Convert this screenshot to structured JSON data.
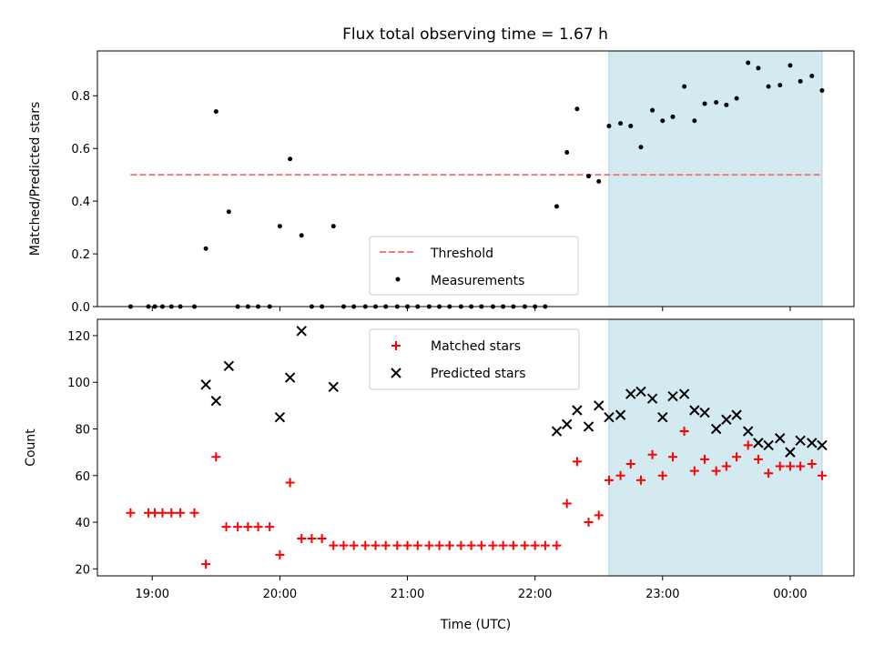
{
  "chart_data": [
    {
      "type": "scatter",
      "title": "Flux total observing time = 1.67 h",
      "ylabel": "Matched/Predicted stars",
      "xlabel": "",
      "ylim": [
        0,
        0.97
      ],
      "yticks": [
        0.0,
        0.2,
        0.4,
        0.6,
        0.8
      ],
      "ytick_labels": [
        "0.0",
        "0.2",
        "0.4",
        "0.6",
        "0.8"
      ],
      "xlim": [
        18.57,
        24.5
      ],
      "shaded_span": [
        22.58,
        24.25
      ],
      "shade_color": "#d4eaf1",
      "threshold": {
        "name": "Threshold",
        "y": 0.5,
        "x_start": 18.83,
        "x_end": 24.25,
        "color": "#f07b7b"
      },
      "series": [
        {
          "name": "Measurements",
          "marker": "dot",
          "color": "#000000",
          "x": [
            18.83,
            18.97,
            19.02,
            19.08,
            19.15,
            19.22,
            19.33,
            19.42,
            19.5,
            19.6,
            19.67,
            19.75,
            19.83,
            19.92,
            20.0,
            20.08,
            20.17,
            20.25,
            20.33,
            20.42,
            20.5,
            20.58,
            20.67,
            20.75,
            20.83,
            20.92,
            21.0,
            21.08,
            21.17,
            21.25,
            21.33,
            21.42,
            21.5,
            21.58,
            21.67,
            21.75,
            21.83,
            21.92,
            22.0,
            22.08,
            22.17,
            22.25,
            22.33,
            22.42,
            22.5,
            22.58,
            22.67,
            22.75,
            22.83,
            22.92,
            23.0,
            23.08,
            23.17,
            23.25,
            23.33,
            23.42,
            23.5,
            23.58,
            23.67,
            23.75,
            23.83,
            23.92,
            24.0,
            24.08,
            24.17,
            24.25
          ],
          "y": [
            0,
            0,
            0,
            0,
            0,
            0,
            0,
            0.22,
            0.74,
            0.36,
            0,
            0,
            0,
            0,
            0.305,
            0.56,
            0.27,
            0,
            0,
            0.305,
            0,
            0,
            0,
            0,
            0,
            0,
            0,
            0,
            0,
            0,
            0,
            0,
            0,
            0,
            0,
            0,
            0,
            0,
            0,
            0,
            0.38,
            0.585,
            0.75,
            0.495,
            0.475,
            0.685,
            0.695,
            0.685,
            0.605,
            0.745,
            0.705,
            0.72,
            0.835,
            0.705,
            0.77,
            0.775,
            0.765,
            0.79,
            0.925,
            0.905,
            0.835,
            0.84,
            0.915,
            0.855,
            0.875,
            0.82
          ]
        }
      ],
      "legend": {
        "placement": "lower center",
        "entries": [
          "Threshold",
          "Measurements"
        ]
      }
    },
    {
      "type": "scatter",
      "ylabel": "Count",
      "xlabel": "Time (UTC)",
      "ylim": [
        17,
        127
      ],
      "yticks": [
        20,
        40,
        60,
        80,
        100,
        120
      ],
      "ytick_labels": [
        "20",
        "40",
        "60",
        "80",
        "100",
        "120"
      ],
      "xlim": [
        18.57,
        24.5
      ],
      "xticks": [
        19,
        20,
        21,
        22,
        23,
        24
      ],
      "xtick_labels": [
        "19:00",
        "20:00",
        "21:00",
        "22:00",
        "23:00",
        "00:00"
      ],
      "shaded_span": [
        22.58,
        24.25
      ],
      "shade_color": "#d4eaf1",
      "series": [
        {
          "name": "Matched stars",
          "marker": "plus",
          "color": "#ff0000",
          "x": [
            18.83,
            18.97,
            19.02,
            19.08,
            19.15,
            19.22,
            19.33,
            19.42,
            19.5,
            19.58,
            19.67,
            19.75,
            19.83,
            19.92,
            20.0,
            20.08,
            20.17,
            20.25,
            20.33,
            20.42,
            20.5,
            20.58,
            20.67,
            20.75,
            20.83,
            20.92,
            21.0,
            21.08,
            21.17,
            21.25,
            21.33,
            21.42,
            21.5,
            21.58,
            21.67,
            21.75,
            21.83,
            21.92,
            22.0,
            22.08,
            22.17,
            22.25,
            22.33,
            22.42,
            22.5,
            22.58,
            22.67,
            22.75,
            22.83,
            22.92,
            23.0,
            23.08,
            23.17,
            23.25,
            23.33,
            23.42,
            23.5,
            23.58,
            23.67,
            23.75,
            23.83,
            23.92,
            24.0,
            24.08,
            24.17,
            24.25
          ],
          "y": [
            44,
            44,
            44,
            44,
            44,
            44,
            44,
            22,
            68,
            38,
            38,
            38,
            38,
            38,
            26,
            57,
            33,
            33,
            33,
            30,
            30,
            30,
            30,
            30,
            30,
            30,
            30,
            30,
            30,
            30,
            30,
            30,
            30,
            30,
            30,
            30,
            30,
            30,
            30,
            30,
            30,
            48,
            66,
            40,
            43,
            58,
            60,
            65,
            58,
            69,
            60,
            68,
            79,
            62,
            67,
            62,
            64,
            68,
            73,
            67,
            61,
            64,
            64,
            64,
            65,
            60
          ]
        },
        {
          "name": "Predicted stars",
          "marker": "x",
          "color": "#000000",
          "x": [
            19.42,
            19.5,
            19.6,
            20.0,
            20.08,
            20.17,
            20.42,
            22.17,
            22.25,
            22.33,
            22.42,
            22.5,
            22.58,
            22.67,
            22.75,
            22.83,
            22.92,
            23.0,
            23.08,
            23.17,
            23.25,
            23.33,
            23.42,
            23.5,
            23.58,
            23.67,
            23.75,
            23.83,
            23.92,
            24.0,
            24.08,
            24.17,
            24.25
          ],
          "y": [
            99,
            92,
            107,
            85,
            102,
            122,
            98,
            79,
            82,
            88,
            81,
            90,
            85,
            86,
            95,
            96,
            93,
            85,
            94,
            95,
            88,
            87,
            80,
            84,
            86,
            79,
            74,
            73,
            76,
            70,
            75,
            74,
            73
          ]
        }
      ],
      "legend": {
        "placement": "upper center",
        "entries": [
          "Matched stars",
          "Predicted stars"
        ]
      }
    }
  ]
}
